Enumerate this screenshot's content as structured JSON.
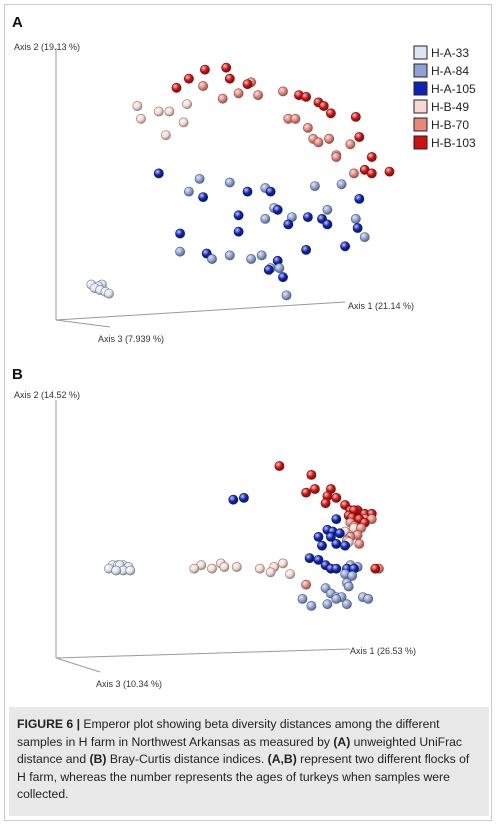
{
  "figure": {
    "caption_label": "FIGURE 6 |",
    "caption_parts": [
      {
        "text": " Emperor plot showing beta diversity distances among the different samples in H farm in Northwest Arkansas as measured by ",
        "bold": false
      },
      {
        "text": "(A)",
        "bold": true
      },
      {
        "text": " unweighted UniFrac distance and ",
        "bold": false
      },
      {
        "text": "(B)",
        "bold": true
      },
      {
        "text": " Bray-Curtis distance indices. ",
        "bold": false
      },
      {
        "text": "(A,B)",
        "bold": true
      },
      {
        "text": " represent two different flocks of H farm, whereas the number represents the ages of turkeys when samples were collected.",
        "bold": false
      }
    ]
  },
  "legend": {
    "entries": [
      {
        "label": "H-A-33",
        "color": "#dde6f2"
      },
      {
        "label": "H-A-84",
        "color": "#8ea2d6"
      },
      {
        "label": "H-A-105",
        "color": "#0d23b5"
      },
      {
        "label": "H-B-49",
        "color": "#f6d9d1"
      },
      {
        "label": "H-B-70",
        "color": "#e8867a"
      },
      {
        "label": "H-B-103",
        "color": "#d01010"
      }
    ]
  },
  "chart_data": [
    {
      "panel": "A",
      "type": "scatter",
      "projection": "3d-perspective",
      "title": "",
      "axis_labels": {
        "axis1": "Axis 1 (21.14 %)",
        "axis2": "Axis 2 (19.13 %)",
        "axis3": "Axis 3 (7.939 %)"
      },
      "series": [
        {
          "name": "H-A-33",
          "color": "#dde6f2",
          "points": [
            [
              -0.86,
              -0.23
            ],
            [
              -0.84,
              -0.22
            ],
            [
              -0.88,
              -0.21
            ],
            [
              -0.83,
              -0.24
            ],
            [
              -0.8,
              -0.25
            ],
            [
              -0.78,
              -0.26
            ],
            [
              -0.82,
              -0.21
            ]
          ]
        },
        {
          "name": "H-A-84",
          "color": "#8ea2d6",
          "points": [
            [
              -0.33,
              0.3
            ],
            [
              -0.27,
              0.37
            ],
            [
              -0.1,
              0.35
            ],
            [
              0.1,
              0.32
            ],
            [
              0.15,
              0.21
            ],
            [
              0.38,
              0.33
            ],
            [
              0.45,
              0.2
            ],
            [
              0.53,
              0.34
            ],
            [
              -0.38,
              -0.03
            ],
            [
              -0.2,
              -0.07
            ],
            [
              0.02,
              -0.07
            ],
            [
              0.13,
              -0.12
            ],
            [
              0.18,
              -0.12
            ],
            [
              0.1,
              0.15
            ],
            [
              0.25,
              0.16
            ],
            [
              -0.1,
              -0.05
            ],
            [
              0.66,
              0.05
            ],
            [
              0.61,
              0.15
            ],
            [
              0.08,
              -0.05
            ],
            [
              0.22,
              -0.27
            ]
          ]
        },
        {
          "name": "H-A-105",
          "color": "#0d23b5",
          "points": [
            [
              -0.5,
              0.4
            ],
            [
              -0.25,
              0.27
            ],
            [
              0.0,
              0.3
            ],
            [
              0.13,
              0.3
            ],
            [
              -0.05,
              0.17
            ],
            [
              0.17,
              0.2
            ],
            [
              -0.38,
              0.07
            ],
            [
              -0.05,
              0.08
            ],
            [
              0.23,
              0.12
            ],
            [
              0.34,
              0.16
            ],
            [
              0.45,
              0.12
            ],
            [
              0.63,
              0.26
            ],
            [
              0.42,
              0.15
            ],
            [
              0.17,
              -0.08
            ],
            [
              0.12,
              -0.13
            ],
            [
              0.2,
              -0.17
            ],
            [
              0.33,
              -0.02
            ],
            [
              -0.23,
              -0.04
            ],
            [
              0.55,
              0.0
            ],
            [
              0.62,
              0.1
            ]
          ]
        },
        {
          "name": "H-B-49",
          "color": "#f6d9d1",
          "points": [
            [
              -0.62,
              0.77
            ],
            [
              -0.6,
              0.7
            ],
            [
              -0.5,
              0.74
            ],
            [
              -0.44,
              0.74
            ],
            [
              -0.34,
              0.78
            ],
            [
              -0.36,
              0.68
            ],
            [
              -0.46,
              0.61
            ]
          ]
        },
        {
          "name": "H-B-70",
          "color": "#e8867a",
          "points": [
            [
              -0.25,
              0.88
            ],
            [
              -0.14,
              0.81
            ],
            [
              -0.05,
              0.84
            ],
            [
              0.02,
              0.9
            ],
            [
              0.06,
              0.83
            ],
            [
              0.2,
              0.85
            ],
            [
              0.23,
              0.7
            ],
            [
              0.27,
              0.7
            ],
            [
              0.34,
              0.65
            ],
            [
              0.37,
              0.59
            ],
            [
              0.4,
              0.57
            ],
            [
              0.46,
              0.59
            ],
            [
              0.5,
              0.5
            ],
            [
              0.58,
              0.56
            ],
            [
              0.6,
              0.4
            ],
            [
              0.46,
              0.59
            ],
            [
              0.5,
              0.49
            ]
          ]
        },
        {
          "name": "H-B-103",
          "color": "#d01010",
          "points": [
            [
              -0.4,
              0.87
            ],
            [
              -0.33,
              0.92
            ],
            [
              -0.24,
              0.97
            ],
            [
              -0.12,
              0.98
            ],
            [
              -0.1,
              0.92
            ],
            [
              0.0,
              0.89
            ],
            [
              0.29,
              0.83
            ],
            [
              0.33,
              0.82
            ],
            [
              0.4,
              0.79
            ],
            [
              0.43,
              0.77
            ],
            [
              0.47,
              0.73
            ],
            [
              0.61,
              0.71
            ],
            [
              0.63,
              0.6
            ],
            [
              0.7,
              0.49
            ],
            [
              0.66,
              0.42
            ],
            [
              0.7,
              0.4
            ],
            [
              0.8,
              0.41
            ]
          ]
        }
      ]
    },
    {
      "panel": "B",
      "type": "scatter",
      "projection": "3d-perspective",
      "title": "",
      "axis_labels": {
        "axis1": "Axis 1 (26.53 %)",
        "axis2": "Axis 2 (14.52 %)",
        "axis3": "Axis 3 (10.34 %)"
      },
      "series": [
        {
          "name": "H-A-33",
          "color": "#dde6f2",
          "points": [
            [
              -0.78,
              0.12
            ],
            [
              -0.76,
              0.14
            ],
            [
              -0.73,
              0.14
            ],
            [
              -0.7,
              0.14
            ],
            [
              -0.67,
              0.13
            ],
            [
              -0.7,
              0.11
            ],
            [
              -0.74,
              0.11
            ],
            [
              -0.66,
              0.11
            ],
            [
              -0.72,
              0.14
            ]
          ]
        },
        {
          "name": "H-A-84",
          "color": "#8ea2d6",
          "points": [
            [
              0.58,
              0.14
            ],
            [
              0.62,
              0.13
            ],
            [
              0.55,
              0.09
            ],
            [
              0.56,
              0.04
            ],
            [
              0.57,
              0.02
            ],
            [
              0.44,
              0.01
            ],
            [
              0.47,
              -0.02
            ],
            [
              0.5,
              -0.04
            ],
            [
              0.53,
              -0.04
            ],
            [
              0.5,
              -0.05
            ],
            [
              0.65,
              -0.04
            ],
            [
              0.68,
              -0.05
            ],
            [
              0.45,
              -0.08
            ],
            [
              0.36,
              -0.09
            ],
            [
              0.31,
              -0.05
            ],
            [
              0.56,
              -0.08
            ],
            [
              0.59,
              0.08
            ]
          ]
        },
        {
          "name": "H-A-105",
          "color": "#0d23b5",
          "points": [
            [
              -0.08,
              0.51
            ],
            [
              -0.02,
              0.52
            ],
            [
              0.42,
              0.25
            ],
            [
              0.5,
              0.4
            ],
            [
              0.55,
              0.25
            ],
            [
              0.4,
              0.3
            ],
            [
              0.48,
              0.33
            ],
            [
              0.52,
              0.32
            ],
            [
              0.47,
              0.3
            ],
            [
              0.5,
              0.26
            ],
            [
              0.35,
              0.18
            ],
            [
              0.4,
              0.17
            ],
            [
              0.44,
              0.14
            ],
            [
              0.47,
              0.12
            ],
            [
              0.5,
              0.12
            ],
            [
              0.56,
              0.12
            ],
            [
              0.6,
              0.12
            ],
            [
              0.45,
              0.34
            ]
          ]
        },
        {
          "name": "H-B-49",
          "color": "#f6d9d1",
          "points": [
            [
              -0.2,
              0.12
            ],
            [
              -0.26,
              0.14
            ],
            [
              -0.3,
              0.12
            ],
            [
              -0.15,
              0.15
            ],
            [
              -0.13,
              0.13
            ],
            [
              -0.06,
              0.13
            ],
            [
              0.07,
              0.12
            ],
            [
              0.15,
              0.13
            ],
            [
              0.2,
              0.15
            ],
            [
              0.13,
              0.1
            ],
            [
              0.24,
              0.09
            ],
            [
              0.55,
              0.33
            ],
            [
              0.6,
              0.35
            ],
            [
              0.57,
              0.27
            ]
          ]
        },
        {
          "name": "H-B-70",
          "color": "#e8867a",
          "points": [
            [
              0.6,
              0.36
            ],
            [
              0.64,
              0.35
            ],
            [
              0.62,
              0.31
            ],
            [
              0.58,
              0.3
            ],
            [
              0.56,
              0.28
            ],
            [
              0.66,
              0.4
            ],
            [
              0.7,
              0.4
            ],
            [
              0.63,
              0.26
            ],
            [
              0.33,
              0.03
            ],
            [
              0.58,
              0.38
            ],
            [
              0.74,
              0.12
            ]
          ]
        },
        {
          "name": "H-B-103",
          "color": "#d01010",
          "points": [
            [
              0.18,
              0.7
            ],
            [
              0.36,
              0.65
            ],
            [
              0.38,
              0.57
            ],
            [
              0.33,
              0.55
            ],
            [
              0.47,
              0.57
            ],
            [
              0.5,
              0.52
            ],
            [
              0.45,
              0.53
            ],
            [
              0.44,
              0.49
            ],
            [
              0.55,
              0.48
            ],
            [
              0.58,
              0.45
            ],
            [
              0.62,
              0.45
            ],
            [
              0.57,
              0.42
            ],
            [
              0.63,
              0.4
            ],
            [
              0.59,
              0.41
            ],
            [
              0.66,
              0.43
            ],
            [
              0.7,
              0.43
            ],
            [
              0.6,
              0.45
            ],
            [
              0.66,
              0.38
            ],
            [
              0.72,
              0.12
            ]
          ]
        }
      ]
    }
  ]
}
